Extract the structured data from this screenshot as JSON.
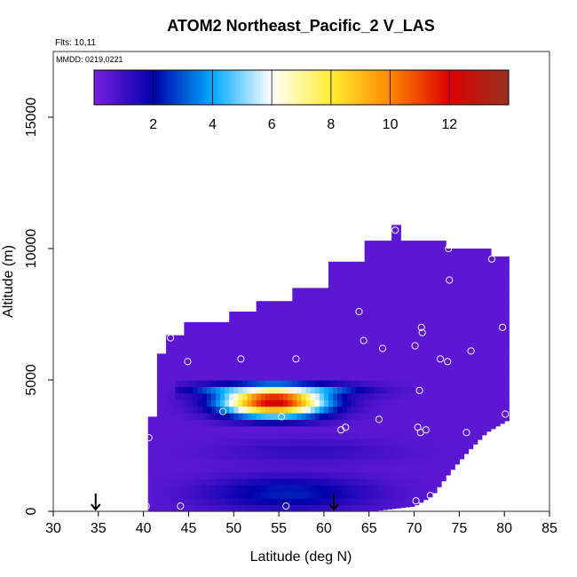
{
  "chart_data": {
    "type": "heatmap",
    "title": "ATOM2 Northeast_Pacific_2 V_LAS",
    "flights_note": "Flts: 10,11",
    "dates_note": "MMDD: 0219,0221",
    "xlabel": "Latitude (deg N)",
    "ylabel": "Altitude (m)",
    "xlim": [
      30,
      85
    ],
    "ylim": [
      0,
      17500
    ],
    "x_ticks": [
      30,
      35,
      40,
      45,
      50,
      55,
      60,
      65,
      70,
      75,
      80,
      85
    ],
    "y_ticks": [
      0,
      5000,
      10000,
      15000
    ],
    "colorbar": {
      "min": 0,
      "max": 14,
      "ticks": [
        2,
        4,
        6,
        8,
        10,
        12
      ],
      "colors": [
        "#7a1fe0",
        "#0000aa",
        "#00aaff",
        "#ffffff",
        "#ffee33",
        "#ff8800",
        "#dd0000",
        "#993322"
      ]
    },
    "flight_arrows_lat": [
      34.7,
      61.1
    ],
    "observations": [
      [
        40.3,
        200
      ],
      [
        44.1,
        200
      ],
      [
        55.8,
        200
      ],
      [
        70.2,
        400
      ],
      [
        71.8,
        600
      ],
      [
        40.6,
        2800
      ],
      [
        75.8,
        3000
      ],
      [
        70.4,
        3200
      ],
      [
        71.3,
        3100
      ],
      [
        70.7,
        3000
      ],
      [
        61.9,
        3100
      ],
      [
        62.4,
        3200
      ],
      [
        66.1,
        3500
      ],
      [
        80.1,
        3700
      ],
      [
        55.3,
        3600
      ],
      [
        48.8,
        3800
      ],
      [
        70.6,
        4600
      ],
      [
        44.9,
        5700
      ],
      [
        50.8,
        5800
      ],
      [
        56.9,
        5800
      ],
      [
        73.7,
        5700
      ],
      [
        72.9,
        5800
      ],
      [
        76.3,
        6100
      ],
      [
        66.5,
        6200
      ],
      [
        70.1,
        6300
      ],
      [
        64.4,
        6500
      ],
      [
        43.0,
        6600
      ],
      [
        70.9,
        6800
      ],
      [
        70.8,
        7000
      ],
      [
        79.8,
        7000
      ],
      [
        63.9,
        7600
      ],
      [
        73.9,
        8800
      ],
      [
        78.6,
        9600
      ],
      [
        73.8,
        10000
      ],
      [
        67.9,
        10700
      ]
    ],
    "profiles": [
      {
        "lat_start": 40.5,
        "lat_end": 41.5,
        "top": 3600
      },
      {
        "lat_start": 41.5,
        "lat_end": 42.5,
        "top": 6000
      },
      {
        "lat_start": 42.5,
        "lat_end": 44.5,
        "top": 6700
      },
      {
        "lat_start": 44.5,
        "lat_end": 49.5,
        "top": 7200
      },
      {
        "lat_start": 49.5,
        "lat_end": 52.5,
        "top": 7600
      },
      {
        "lat_start": 52.5,
        "lat_end": 56.5,
        "top": 8000
      },
      {
        "lat_start": 56.5,
        "lat_end": 60.5,
        "top": 8500
      },
      {
        "lat_start": 60.5,
        "lat_end": 64.5,
        "top": 9500
      },
      {
        "lat_start": 64.5,
        "lat_end": 67.5,
        "top": 10300
      },
      {
        "lat_start": 67.5,
        "lat_end": 68.5,
        "top": 10900
      },
      {
        "lat_start": 68.5,
        "lat_end": 73.5,
        "top": 10300
      },
      {
        "lat_start": 73.5,
        "lat_end": 78.5,
        "top": 10000
      },
      {
        "lat_start": 78.5,
        "lat_end": 80.5,
        "top": 9700
      }
    ],
    "bottom_edge": [
      [
        40.5,
        0
      ],
      [
        65,
        0
      ],
      [
        70,
        200
      ],
      [
        72,
        600
      ],
      [
        74,
        1500
      ],
      [
        76,
        2300
      ],
      [
        78,
        3000
      ],
      [
        80.5,
        3500
      ]
    ],
    "layers": [
      {
        "alt": 4200,
        "thickness": 1400,
        "peak_lat": 54.5,
        "peak_value": 12.5,
        "lat_from": 41.5,
        "lat_to": 69.5,
        "spread": 5.5
      },
      {
        "alt": 4600,
        "thickness": 700,
        "peak_lat": 54.5,
        "peak_value": 6.5,
        "lat_from": 43.5,
        "lat_to": 70.0,
        "spread": 8.0
      },
      {
        "alt": 700,
        "thickness": 1600,
        "peak_lat": 56.0,
        "peak_value": 2.4,
        "lat_from": 41.0,
        "lat_to": 72.0,
        "spread": 9.0
      },
      {
        "alt": 2300,
        "thickness": 1200,
        "peak_lat": 58.0,
        "peak_value": 1.2,
        "lat_from": 41.0,
        "lat_to": 76.0,
        "spread": 10.0
      }
    ]
  }
}
